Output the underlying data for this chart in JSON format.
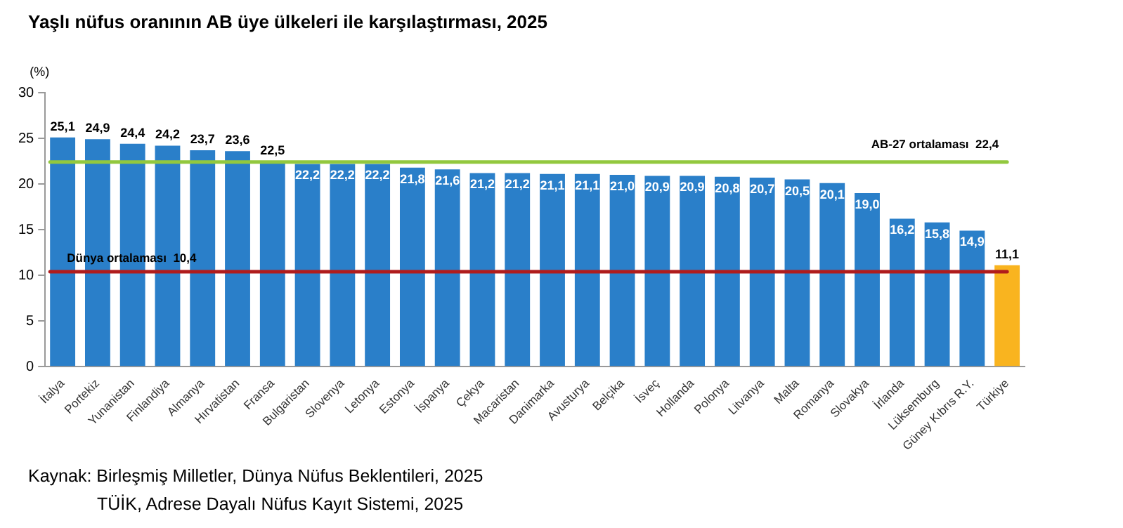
{
  "chart_data": {
    "type": "bar",
    "title": "Yaşlı nüfus oranının AB üye ülkeleri ile karşılaştırması, 2025",
    "ylabel": "(%)",
    "categories": [
      "İtalya",
      "Portekiz",
      "Yunanistan",
      "Finlandiya",
      "Almanya",
      "Hırvatistan",
      "Fransa",
      "Bulgaristan",
      "Slovenya",
      "Letonya",
      "Estonya",
      "İspanya",
      "Çekya",
      "Macaristan",
      "Danimarka",
      "Avusturya",
      "Belçika",
      "İsveç",
      "Hollanda",
      "Polonya",
      "Litvanya",
      "Malta",
      "Romanya",
      "Slovakya",
      "İrlanda",
      "Lüksemburg",
      "Güney Kıbrıs R.Y.",
      "Türkiye"
    ],
    "values": [
      25.1,
      24.9,
      24.4,
      24.2,
      23.7,
      23.6,
      22.5,
      22.2,
      22.2,
      22.2,
      21.8,
      21.6,
      21.2,
      21.2,
      21.1,
      21.1,
      21.0,
      20.9,
      20.9,
      20.8,
      20.7,
      20.5,
      20.1,
      19.0,
      16.2,
      15.8,
      14.9,
      11.1
    ],
    "value_labels": [
      "25,1",
      "24,9",
      "24,4",
      "24,2",
      "23,7",
      "23,6",
      "22,5",
      "22,2",
      "22,2",
      "22,2",
      "21,8",
      "21,6",
      "21,2",
      "21,2",
      "21,1",
      "21,1",
      "21,0",
      "20,9",
      "20,9",
      "20,8",
      "20,7",
      "20,5",
      "20,1",
      "19,0",
      "16,2",
      "15,8",
      "14,9",
      "11,1"
    ],
    "colors": [
      "#2a7fc9",
      "#2a7fc9",
      "#2a7fc9",
      "#2a7fc9",
      "#2a7fc9",
      "#2a7fc9",
      "#2a7fc9",
      "#2a7fc9",
      "#2a7fc9",
      "#2a7fc9",
      "#2a7fc9",
      "#2a7fc9",
      "#2a7fc9",
      "#2a7fc9",
      "#2a7fc9",
      "#2a7fc9",
      "#2a7fc9",
      "#2a7fc9",
      "#2a7fc9",
      "#2a7fc9",
      "#2a7fc9",
      "#2a7fc9",
      "#2a7fc9",
      "#2a7fc9",
      "#2a7fc9",
      "#2a7fc9",
      "#2a7fc9",
      "#f9b41f"
    ],
    "ylim": [
      0,
      30
    ],
    "yticks": [
      0,
      5,
      10,
      15,
      20,
      25,
      30
    ],
    "grid": false,
    "legend": false,
    "ref_lines": [
      {
        "axis": "y",
        "value": 22.4,
        "label": "AB-27 ortalaması  22,4",
        "color": "#92c83e"
      },
      {
        "axis": "y",
        "value": 10.4,
        "label": "Dünya ortalaması  10,4",
        "color": "#b01c1c"
      }
    ],
    "annotations": [
      "Kaynak: Birleşmiş Milletler, Dünya Nüfus Beklentileri, 2025",
      "TÜİK, Adrese Dayalı Nüfus Kayıt Sistemi, 2025"
    ]
  }
}
